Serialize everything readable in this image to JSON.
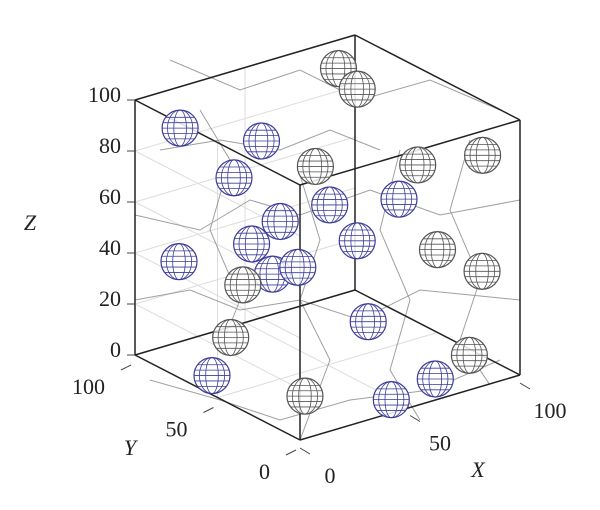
{
  "chart_data": {
    "type": "scatter3d",
    "x_label": "X",
    "y_label": "Y",
    "z_label": "Z",
    "xlim": [
      0,
      100
    ],
    "xticks": [
      0,
      50,
      100
    ],
    "ylim": [
      0,
      100
    ],
    "yticks": [
      0,
      50,
      100
    ],
    "zlim": [
      0,
      100
    ],
    "zticks": [
      0,
      20,
      40,
      60,
      80,
      100
    ],
    "grid": true,
    "series": [
      {
        "color": "#3c3c9c",
        "x": [
          13,
          35,
          15,
          21,
          36,
          41,
          75,
          5,
          23,
          25,
          29,
          46,
          5,
          49,
          69
        ],
        "y": [
          90,
          70,
          60,
          40,
          30,
          20,
          40,
          80,
          60,
          50,
          40,
          20,
          60,
          10,
          10
        ],
        "z": [
          89,
          85,
          79,
          67,
          73,
          61,
          62,
          42,
          51,
          42,
          47,
          28,
          4,
          0,
          3
        ]
      },
      {
        "color": "#555555",
        "x": [
          85,
          86,
          91,
          98,
          22,
          85,
          100,
          19,
          6,
          6,
          95
        ],
        "y": [
          90,
          80,
          50,
          20,
          20,
          30,
          23,
          60,
          50,
          5,
          24
        ],
        "z": [
          94,
          89,
          68,
          80,
          95,
          43,
          33,
          36,
          22,
          14,
          1
        ]
      }
    ]
  }
}
